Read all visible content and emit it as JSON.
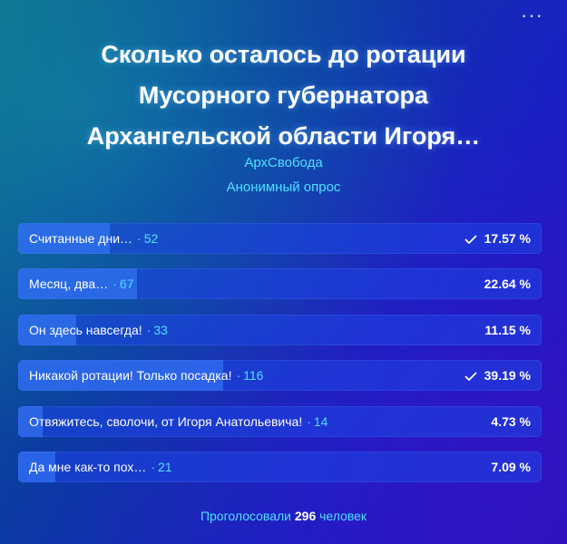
{
  "poll": {
    "title_line1": "Сколько осталось до ротации",
    "title_line2": "Мусорного губернатора",
    "title_line3": "Архангельской области Игоря…",
    "author": "АрхСвобода",
    "type": "Анонимный опрос",
    "menu_icon": "more-dots-icon",
    "options": [
      {
        "text": "Считанные дни…",
        "votes": "52",
        "percent": "17.57 %",
        "share": 0.1757,
        "voted": true
      },
      {
        "text": "Месяц, два…",
        "votes": "67",
        "percent": "22.64 %",
        "share": 0.2264,
        "voted": false
      },
      {
        "text": "Он здесь навсегда!",
        "votes": "33",
        "percent": "11.15 %",
        "share": 0.1115,
        "voted": false
      },
      {
        "text": "Никакой ротации! Только посадка!",
        "votes": "116",
        "percent": "39.19 %",
        "share": 0.3919,
        "voted": true
      },
      {
        "text": "Отвяжитесь, сволочи, от Игоря Анатольевича!",
        "votes": "14",
        "percent": "4.73 %",
        "share": 0.0473,
        "voted": false
      },
      {
        "text": "Да мне как-то пох…",
        "votes": "21",
        "percent": "7.09 %",
        "share": 0.0709,
        "voted": false
      }
    ],
    "footer_prefix": "Проголосовали",
    "footer_count": "296",
    "footer_suffix": "человек"
  },
  "colors": {
    "accent": "#4fe0ff",
    "text": "#ffffff",
    "option_bg": "#1e46e6",
    "option_fill": "#3c82ff"
  }
}
